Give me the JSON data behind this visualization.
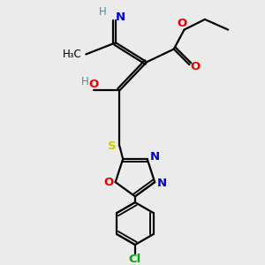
{
  "bg_color": "#ebebeb",
  "atom_colors": {
    "C": "#000000",
    "N": "#0000cc",
    "O": "#ee0000",
    "S": "#cccc00",
    "Cl": "#00aa00",
    "H": "#4a9090"
  },
  "figsize": [
    3.0,
    3.0
  ],
  "dpi": 100
}
